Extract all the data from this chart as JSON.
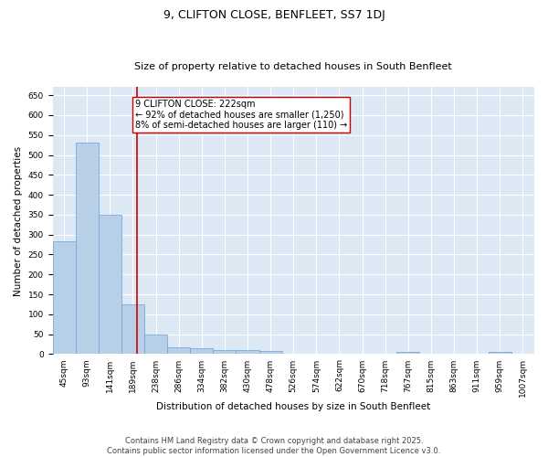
{
  "title": "9, CLIFTON CLOSE, BENFLEET, SS7 1DJ",
  "subtitle": "Size of property relative to detached houses in South Benfleet",
  "xlabel": "Distribution of detached houses by size in South Benfleet",
  "ylabel": "Number of detached properties",
  "bar_categories": [
    "45sqm",
    "93sqm",
    "141sqm",
    "189sqm",
    "238sqm",
    "286sqm",
    "334sqm",
    "382sqm",
    "430sqm",
    "478sqm",
    "526sqm",
    "574sqm",
    "622sqm",
    "670sqm",
    "718sqm",
    "767sqm",
    "815sqm",
    "863sqm",
    "911sqm",
    "959sqm",
    "1007sqm"
  ],
  "bar_values": [
    283,
    530,
    350,
    125,
    50,
    17,
    15,
    10,
    10,
    8,
    0,
    0,
    0,
    0,
    0,
    5,
    0,
    0,
    0,
    5,
    0
  ],
  "bar_color": "#b8cfe8",
  "bar_edgecolor": "#6a9fd8",
  "bar_linewidth": 0.5,
  "redline_color": "#cc0000",
  "redline_linewidth": 1.2,
  "annotation_text": "9 CLIFTON CLOSE: 222sqm\n← 92% of detached houses are smaller (1,250)\n8% of semi-detached houses are larger (110) →",
  "annotation_box_edgecolor": "#cc0000",
  "annotation_box_facecolor": "#ffffff",
  "ylim": [
    0,
    670
  ],
  "yticks": [
    0,
    50,
    100,
    150,
    200,
    250,
    300,
    350,
    400,
    450,
    500,
    550,
    600,
    650
  ],
  "background_color": "#dde8f5",
  "grid_color": "#ffffff",
  "footer": "Contains HM Land Registry data © Crown copyright and database right 2025.\nContains public sector information licensed under the Open Government Licence v3.0.",
  "title_fontsize": 9,
  "subtitle_fontsize": 8,
  "xlabel_fontsize": 7.5,
  "ylabel_fontsize": 7.5,
  "tick_fontsize": 6.5,
  "annotation_fontsize": 7,
  "footer_fontsize": 6
}
